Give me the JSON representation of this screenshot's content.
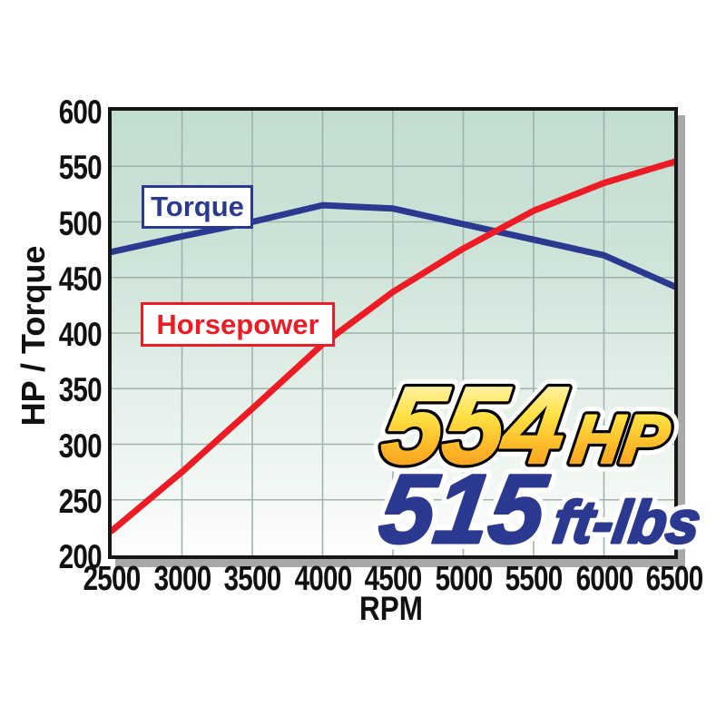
{
  "chart_data": {
    "type": "line",
    "title": "",
    "xlabel": "RPM",
    "ylabel": "HP / Torque",
    "xlim": [
      2500,
      6500
    ],
    "ylim": [
      200,
      600
    ],
    "xticks": [
      2500,
      3000,
      3500,
      4000,
      4500,
      5000,
      5500,
      6000,
      6500
    ],
    "yticks": [
      600,
      550,
      500,
      450,
      400,
      350,
      300,
      250,
      200
    ],
    "grid": true,
    "x": [
      2500,
      3000,
      3500,
      4000,
      4500,
      5000,
      5500,
      6000,
      6500
    ],
    "series": [
      {
        "name": "Torque",
        "color": "#2b3990",
        "values": [
          473,
          487,
          500,
          515,
          512,
          498,
          484,
          470,
          442
        ]
      },
      {
        "name": "Horsepower",
        "color": "#ed1c24",
        "values": [
          222,
          275,
          332,
          390,
          437,
          476,
          510,
          535,
          554
        ]
      }
    ],
    "legend_position": "inline-boxes-on-plot"
  },
  "axis": {
    "y_title": "HP / Torque",
    "x_title": "RPM"
  },
  "series_labels": {
    "torque": "Torque",
    "horsepower": "Horsepower"
  },
  "hero": {
    "hp_value": "554",
    "hp_unit": "HP",
    "tq_value": "515",
    "tq_unit": "ft-lbs"
  },
  "colors": {
    "torque_line": "#2b3990",
    "horsepower_line": "#ed1c24",
    "grid": "#9fb3ab",
    "frame_border": "#161616",
    "frame_shadow": "#a8a8a8",
    "plot_bg_top": "#c3ddd0",
    "plot_bg_bottom": "#fdfefd",
    "hero_gold_top": "#fffce8",
    "hero_gold_mid": "#ffd93b",
    "hero_gold_bottom": "#f68b1f",
    "hero_blue": "#2b3990"
  }
}
